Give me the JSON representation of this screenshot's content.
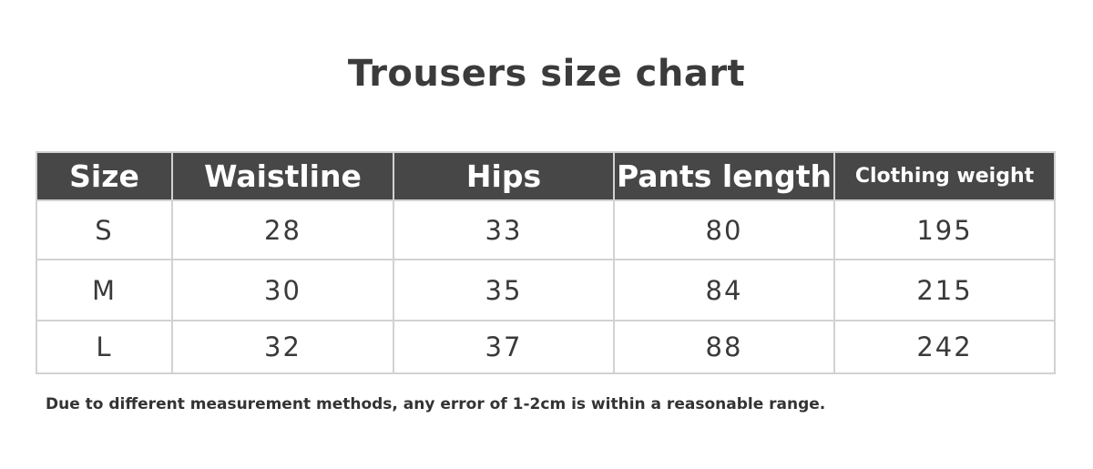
{
  "title": "Trousers size chart",
  "table": {
    "headers": [
      "Size",
      "Waistline",
      "Hips",
      "Pants length",
      "Clothing weight"
    ],
    "rows": [
      [
        "S",
        "28",
        "33",
        "80",
        "195"
      ],
      [
        "M",
        "30",
        "35",
        "84",
        "215"
      ],
      [
        "L",
        "32",
        "37",
        "88",
        "242"
      ]
    ]
  },
  "note": "Due to different measurement methods, any error of 1-2cm is within a reasonable range.",
  "colors": {
    "header_bg": "#474747",
    "header_text": "#ffffff",
    "border": "#d2d2d2"
  }
}
